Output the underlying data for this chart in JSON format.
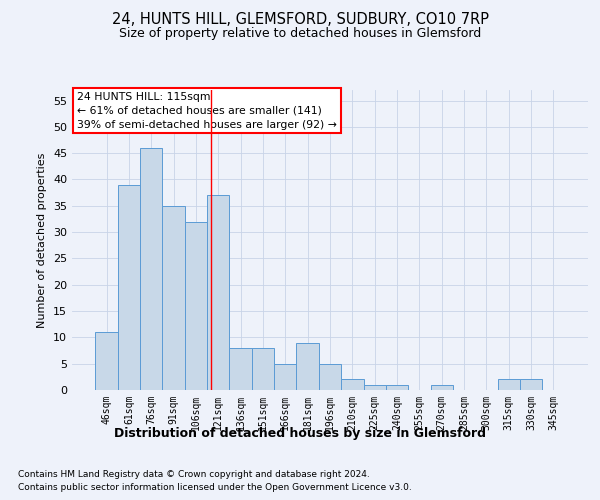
{
  "title": "24, HUNTS HILL, GLEMSFORD, SUDBURY, CO10 7RP",
  "subtitle": "Size of property relative to detached houses in Glemsford",
  "xlabel": "Distribution of detached houses by size in Glemsford",
  "ylabel": "Number of detached properties",
  "categories": [
    "46sqm",
    "61sqm",
    "76sqm",
    "91sqm",
    "106sqm",
    "121sqm",
    "136sqm",
    "151sqm",
    "166sqm",
    "181sqm",
    "196sqm",
    "210sqm",
    "225sqm",
    "240sqm",
    "255sqm",
    "270sqm",
    "285sqm",
    "300sqm",
    "315sqm",
    "330sqm",
    "345sqm"
  ],
  "values": [
    11,
    39,
    46,
    35,
    32,
    37,
    8,
    8,
    5,
    9,
    5,
    2,
    1,
    1,
    0,
    1,
    0,
    0,
    2,
    2,
    0
  ],
  "bar_color": "#c8d8e8",
  "bar_edge_color": "#5b9bd5",
  "red_line_x": 4.67,
  "annotation_text": "24 HUNTS HILL: 115sqm\n← 61% of detached houses are smaller (141)\n39% of semi-detached houses are larger (92) →",
  "annotation_box_color": "white",
  "annotation_box_edge_color": "red",
  "ylim": [
    0,
    57
  ],
  "yticks": [
    0,
    5,
    10,
    15,
    20,
    25,
    30,
    35,
    40,
    45,
    50,
    55
  ],
  "grid_color": "#c8d4e8",
  "footer_line1": "Contains HM Land Registry data © Crown copyright and database right 2024.",
  "footer_line2": "Contains public sector information licensed under the Open Government Licence v3.0.",
  "background_color": "#eef2fa"
}
